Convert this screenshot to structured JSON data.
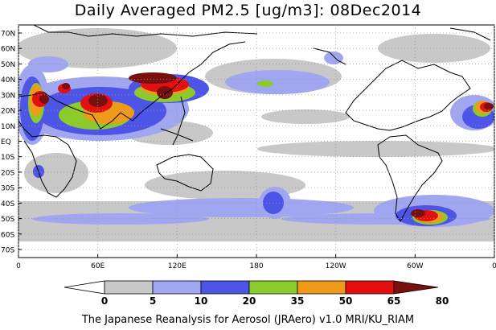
{
  "title": "Daily Averaged PM2.5 [ug/m3]: 08Dec2014",
  "footer": "The Japanese Reanalysis for Aerosol (JRAero) v1.0 MRI/KU_RIAM",
  "colors": {
    "c0": "#ffffff",
    "c5": "#c8c8c8",
    "c10": "#a0a6f0",
    "c20": "#4d55e6",
    "c35": "#8ccc2a",
    "c50": "#f09a1a",
    "c65": "#e41010",
    "c80": "#7a0f0f"
  },
  "map": {
    "lat_ticks": [
      "70N",
      "60N",
      "50N",
      "40N",
      "30N",
      "20N",
      "10N",
      "EQ",
      "10S",
      "20S",
      "30S",
      "40S",
      "50S",
      "60S",
      "70S"
    ],
    "lon_ticks": [
      "0",
      "60E",
      "120E",
      "180",
      "120W",
      "60W",
      "0"
    ]
  },
  "colorbar": {
    "labels": [
      "0",
      "5",
      "10",
      "20",
      "35",
      "50",
      "65",
      "80"
    ],
    "colors": [
      "#ffffff",
      "#c8c8c8",
      "#a0a6f0",
      "#4d55e6",
      "#8ccc2a",
      "#f09a1a",
      "#e41010",
      "#7a0f0f"
    ]
  }
}
